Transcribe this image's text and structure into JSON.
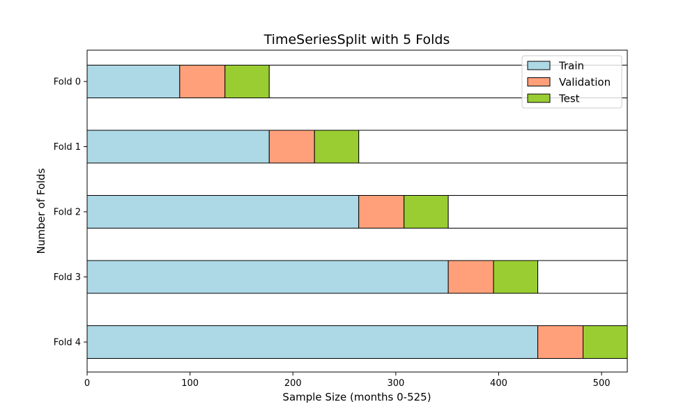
{
  "chart_data": {
    "type": "bar",
    "orientation": "horizontal",
    "stacked": true,
    "title": "TimeSeriesSplit with 5 Folds",
    "xlabel": "Sample Size (months 0-525)",
    "ylabel": "Number of Folds",
    "xlim": [
      0,
      525
    ],
    "xticks": [
      0,
      100,
      200,
      300,
      400,
      500
    ],
    "grid": false,
    "legend_position": "top-right",
    "categories": [
      "Fold 0",
      "Fold 1",
      "Fold 2",
      "Fold 3",
      "Fold 4"
    ],
    "total": 525,
    "series": [
      {
        "name": "Train",
        "color": "#add8e6",
        "values": [
          90,
          177,
          264,
          351,
          438
        ]
      },
      {
        "name": "Validation",
        "color": "#ffa07a",
        "values": [
          44,
          44,
          44,
          44,
          44
        ]
      },
      {
        "name": "Test",
        "color": "#9acd32",
        "values": [
          43,
          43,
          43,
          43,
          43
        ]
      }
    ],
    "remainder_color": "#ffffff"
  }
}
